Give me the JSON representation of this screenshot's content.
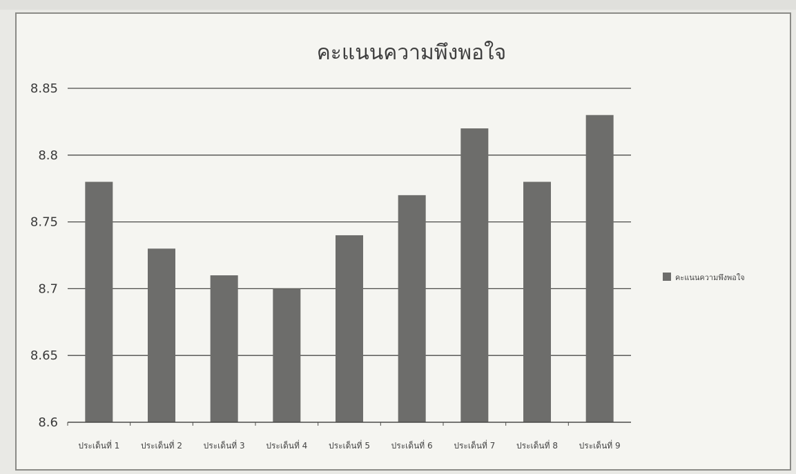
{
  "chart_data": {
    "type": "bar",
    "title": "คะแนนความพึงพอใจ",
    "categories": [
      "ประเด็นที่ 1",
      "ประเด็นที่ 2",
      "ประเด็นที่ 3",
      "ประเด็นที่ 4",
      "ประเด็นที่ 5",
      "ประเด็นที่ 6",
      "ประเด็นที่ 7",
      "ประเด็นที่ 8",
      "ประเด็นที่ 9"
    ],
    "series": [
      {
        "name": "คะแนนความพึงพอใจ",
        "values": [
          8.78,
          8.73,
          8.71,
          8.7,
          8.74,
          8.77,
          8.82,
          8.78,
          8.83
        ]
      }
    ],
    "ylim": [
      8.6,
      8.85
    ],
    "yticks": [
      "8.6",
      "8.65",
      "8.7",
      "8.75",
      "8.8",
      "8.85"
    ],
    "xlabel": "",
    "ylabel": "",
    "grid": true,
    "legend": "right",
    "colors": {
      "bar": "#6d6d6b",
      "gridline": "#4a4a48",
      "background": "#f5f5f1"
    }
  }
}
